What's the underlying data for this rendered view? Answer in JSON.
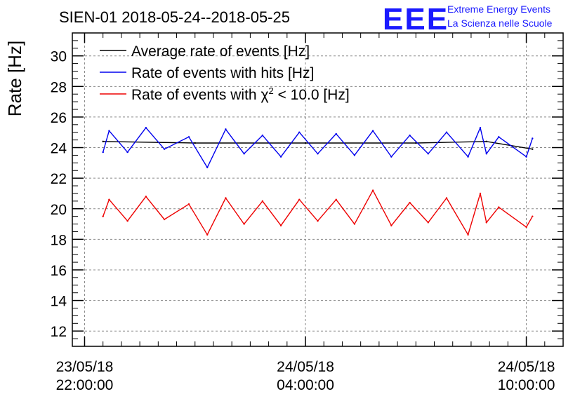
{
  "header": {
    "title": "SIEN-01 2018-05-24--2018-05-25",
    "logo_text": "EEE",
    "logo_line1": "Extreme Energy Events",
    "logo_line2": "La Scienza nelle Scuole"
  },
  "colors": {
    "average": "#000000",
    "hits": "#0000ee",
    "chi2": "#ee0000",
    "logo": "#1a1aff",
    "grid": "#888888"
  },
  "chart_data": {
    "type": "line",
    "title": "SIEN-01 2018-05-24--2018-05-25",
    "ylabel": "Rate [Hz]",
    "xlabel": "",
    "ylim": [
      11,
      31.5
    ],
    "yticks": [
      12,
      14,
      16,
      18,
      20,
      22,
      24,
      26,
      28,
      30
    ],
    "xlim": [
      "2018-05-23 21:40:00",
      "2018-05-24 11:00:00"
    ],
    "xticks": [
      {
        "x": "2018-05-23 22:00:00",
        "date": "23/05/18",
        "time": "22:00:00"
      },
      {
        "x": "2018-05-24 04:00:00",
        "date": "24/05/18",
        "time": "04:00:00"
      },
      {
        "x": "2018-05-24 10:00:00",
        "date": "24/05/18",
        "time": "10:00:00"
      }
    ],
    "grid": true,
    "legend_position": "top-left",
    "series": [
      {
        "name": "Average rate of events [Hz]",
        "color": "#000000",
        "x": [
          "2018-05-23 22:30:00",
          "2018-05-24 01:00:00",
          "2018-05-24 04:00:00",
          "2018-05-24 07:00:00",
          "2018-05-24 08:55:00",
          "2018-05-24 10:10:00"
        ],
        "y": [
          24.4,
          24.3,
          24.3,
          24.3,
          24.4,
          23.9
        ]
      },
      {
        "name": "Rate of events with hits [Hz]",
        "color": "#0000ee",
        "x": [
          "2018-05-23 22:30:00",
          "2018-05-23 22:40:00",
          "2018-05-23 23:10:00",
          "2018-05-23 23:40:00",
          "2018-05-24 00:10:00",
          "2018-05-24 00:50:00",
          "2018-05-24 01:20:00",
          "2018-05-24 01:50:00",
          "2018-05-24 02:20:00",
          "2018-05-24 02:50:00",
          "2018-05-24 03:20:00",
          "2018-05-24 03:50:00",
          "2018-05-24 04:20:00",
          "2018-05-24 04:50:00",
          "2018-05-24 05:20:00",
          "2018-05-24 05:50:00",
          "2018-05-24 06:20:00",
          "2018-05-24 06:50:00",
          "2018-05-24 07:20:00",
          "2018-05-24 07:50:00",
          "2018-05-24 08:25:00",
          "2018-05-24 08:45:00",
          "2018-05-24 08:55:00",
          "2018-05-24 09:15:00",
          "2018-05-24 10:00:00",
          "2018-05-24 10:10:00"
        ],
        "y": [
          23.7,
          25.1,
          23.7,
          25.3,
          23.9,
          24.7,
          22.7,
          25.2,
          23.6,
          24.8,
          23.4,
          25.0,
          23.6,
          24.9,
          23.5,
          25.1,
          23.4,
          24.8,
          23.6,
          25.0,
          23.4,
          25.3,
          23.6,
          24.7,
          23.4,
          24.6
        ]
      },
      {
        "name": "Rate of events with χ² < 10.0 [Hz]",
        "color": "#ee0000",
        "x": [
          "2018-05-23 22:30:00",
          "2018-05-23 22:40:00",
          "2018-05-23 23:10:00",
          "2018-05-23 23:40:00",
          "2018-05-24 00:10:00",
          "2018-05-24 00:50:00",
          "2018-05-24 01:20:00",
          "2018-05-24 01:50:00",
          "2018-05-24 02:20:00",
          "2018-05-24 02:50:00",
          "2018-05-24 03:20:00",
          "2018-05-24 03:50:00",
          "2018-05-24 04:20:00",
          "2018-05-24 04:50:00",
          "2018-05-24 05:20:00",
          "2018-05-24 05:50:00",
          "2018-05-24 06:20:00",
          "2018-05-24 06:50:00",
          "2018-05-24 07:20:00",
          "2018-05-24 07:50:00",
          "2018-05-24 08:25:00",
          "2018-05-24 08:45:00",
          "2018-05-24 08:55:00",
          "2018-05-24 09:15:00",
          "2018-05-24 10:00:00",
          "2018-05-24 10:10:00"
        ],
        "y": [
          19.5,
          20.6,
          19.2,
          20.8,
          19.3,
          20.3,
          18.3,
          20.7,
          19.0,
          20.5,
          18.9,
          20.6,
          19.2,
          20.6,
          19.0,
          21.2,
          18.9,
          20.4,
          19.1,
          20.7,
          18.3,
          21.0,
          19.1,
          20.1,
          18.8,
          19.5
        ]
      }
    ],
    "legend": [
      {
        "label": "Average rate of events [Hz]",
        "color": "#000000"
      },
      {
        "label": "Rate of events with hits [Hz]",
        "color": "#0000ee"
      },
      {
        "label_prefix": "Rate of events with ",
        "label_symbol": "χ",
        "label_sup": "2",
        "label_suffix": " < 10.0 [Hz]",
        "color": "#ee0000"
      }
    ]
  }
}
